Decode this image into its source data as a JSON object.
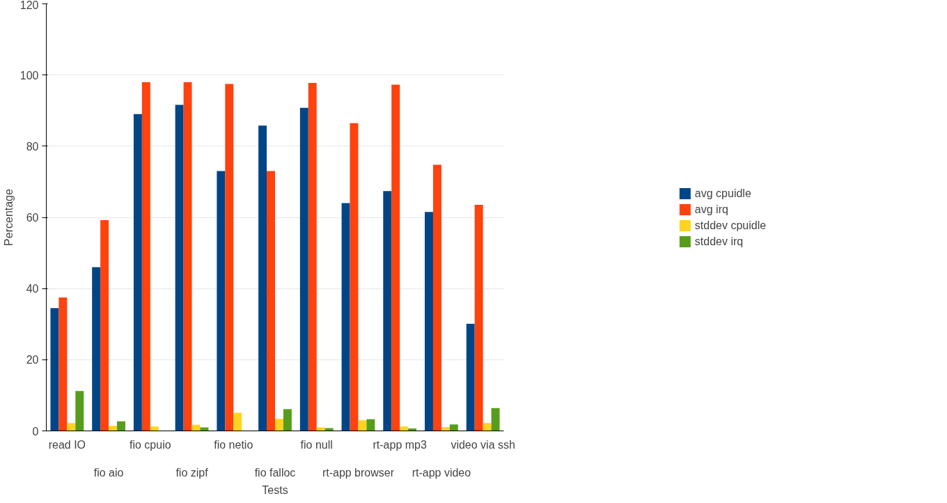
{
  "chart_data": {
    "type": "bar",
    "xlabel": "Tests",
    "ylabel": "Percentage",
    "categories": [
      "read IO",
      "fio aio",
      "fio cpuio",
      "fio zipf",
      "fio netio",
      "fio falloc",
      "fio null",
      "rt-app browser",
      "rt-app mp3",
      "rt-app video",
      "video via ssh"
    ],
    "series": [
      {
        "name": "avg cpuidle",
        "color": "#004586",
        "values": [
          34.5,
          46,
          89,
          91.6,
          73,
          85.8,
          90.8,
          64,
          67.4,
          61.5,
          30.1
        ]
      },
      {
        "name": "avg irq",
        "color": "#ff420e",
        "values": [
          37.5,
          59.2,
          98,
          98,
          97.5,
          73,
          97.8,
          86.5,
          97.3,
          74.8,
          63.5
        ]
      },
      {
        "name": "stddev cpuidle",
        "color": "#ffd320",
        "values": [
          2.2,
          1.4,
          1.2,
          1.7,
          5.1,
          3.4,
          1.0,
          3.0,
          1.2,
          1.1,
          2.2
        ]
      },
      {
        "name": "stddev irq",
        "color": "#579d1c",
        "values": [
          11.2,
          2.7,
          null,
          1.0,
          null,
          6.1,
          0.8,
          3.3,
          0.7,
          1.8,
          6.4
        ]
      }
    ],
    "ylim": [
      0,
      120
    ],
    "yticks": [
      0,
      20,
      40,
      60,
      80,
      100,
      120
    ],
    "grid": "y",
    "legend": "right"
  }
}
